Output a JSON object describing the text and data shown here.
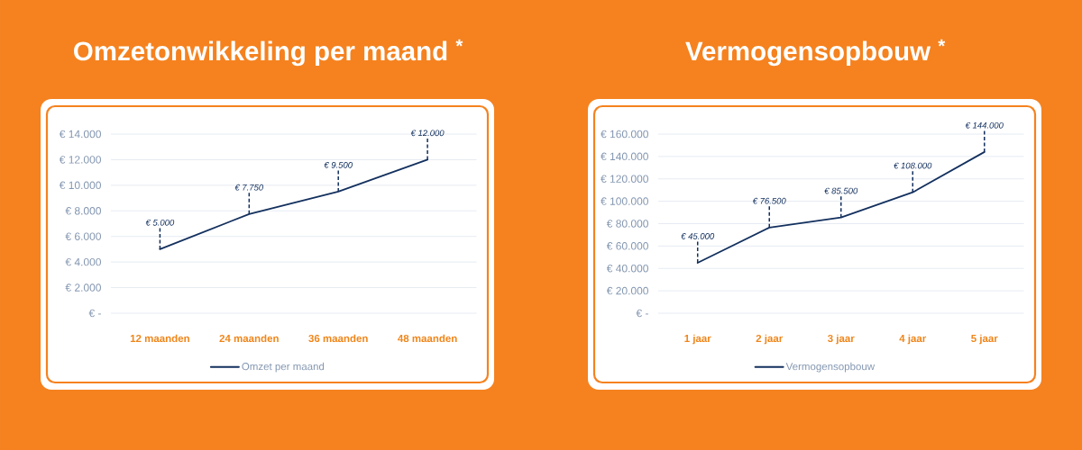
{
  "chart_data": [
    {
      "type": "line",
      "title": "Omzetonwikkeling per maand $^{*}$",
      "categories": [
        "12 maanden",
        "24 maanden",
        "36 maanden",
        "48 maanden"
      ],
      "series": [
        {
          "name": "Omzet per maand",
          "color": "#13305e",
          "values": [
            5000,
            7750,
            9500,
            12000
          ],
          "value_labels": [
            "€ 5.000",
            "€ 7.750",
            "€ 9.500",
            "€ 12.000"
          ]
        }
      ],
      "ylim": [
        0,
        14000
      ],
      "yticks": [
        {
          "value": 0,
          "label": "€ -"
        },
        {
          "value": 2000,
          "label": "€ 2.000"
        },
        {
          "value": 4000,
          "label": "€ 4.000"
        },
        {
          "value": 6000,
          "label": "€ 6.000"
        },
        {
          "value": 8000,
          "label": "€ 8.000"
        },
        {
          "value": 10000,
          "label": "€ 10.000"
        },
        {
          "value": 12000,
          "label": "€ 12.000"
        },
        {
          "value": 14000,
          "label": "€ 14.000"
        }
      ],
      "grid": "y",
      "legend": "bottom",
      "marker": "none",
      "line_style": "solid"
    },
    {
      "type": "line",
      "title": "Vermogensopbouw $^{*}$",
      "categories": [
        "1 jaar",
        "2 jaar",
        "3 jaar",
        "4 jaar",
        "5 jaar"
      ],
      "series": [
        {
          "name": "Vermogensopbouw",
          "color": "#13305e",
          "values": [
            45000,
            76500,
            85500,
            108000,
            144000
          ],
          "value_labels": [
            "€ 45.000",
            "€ 76.500",
            "€ 85.500",
            "€ 108.000",
            "€ 144.000"
          ]
        }
      ],
      "ylim": [
        0,
        160000
      ],
      "yticks": [
        {
          "value": 0,
          "label": "€ -"
        },
        {
          "value": 20000,
          "label": "€ 20.000"
        },
        {
          "value": 40000,
          "label": "€ 40.000"
        },
        {
          "value": 60000,
          "label": "€ 60.000"
        },
        {
          "value": 80000,
          "label": "€ 80.000"
        },
        {
          "value": 100000,
          "label": "€ 100.000"
        },
        {
          "value": 120000,
          "label": "€ 120.000"
        },
        {
          "value": 140000,
          "label": "€ 140.000"
        },
        {
          "value": 160000,
          "label": "€ 160.000"
        }
      ],
      "grid": "y",
      "legend": "bottom",
      "marker": "none",
      "line_style": "solid"
    }
  ]
}
